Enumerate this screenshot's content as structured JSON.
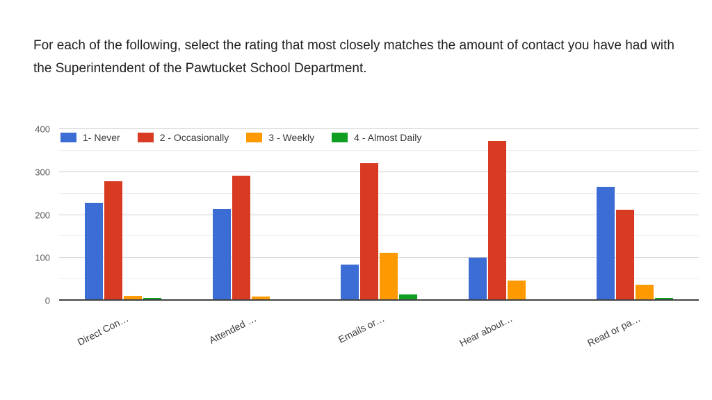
{
  "title": "For each of the following, select the rating that most closely matches the amount of contact you have had with the Superintendent of the Pawtucket School Department.",
  "chart_data": {
    "type": "bar",
    "title": "For each of the following, select the rating that most closely matches the amount of contact you have had with the Superintendent of the Pawtucket School Department.",
    "categories": [
      "Direct Con…",
      "Attended …",
      "Emails or…",
      "Hear about…",
      "Read or pa…"
    ],
    "series": [
      {
        "name": "1- Never",
        "color": "#3c6dd5",
        "values": [
          228,
          214,
          85,
          100,
          265
        ]
      },
      {
        "name": "2 - Occasionally",
        "color": "#d83a22",
        "values": [
          278,
          291,
          320,
          373,
          212
        ]
      },
      {
        "name": "3 - Weekly",
        "color": "#ff9900",
        "values": [
          12,
          9,
          111,
          47,
          38
        ]
      },
      {
        "name": "4 - Almost Daily",
        "color": "#109e20",
        "values": [
          7,
          3,
          14,
          3,
          6
        ]
      }
    ],
    "xlabel": "",
    "ylabel": "",
    "ylim": [
      0,
      400
    ],
    "y_ticks": [
      0,
      100,
      200,
      300,
      400
    ],
    "y_minor_step": 50,
    "grid": true,
    "legend_position": "top",
    "x_label_rotation_deg": -27
  },
  "colors": {
    "background": "#ffffff",
    "title_text": "#212121",
    "axis_tick_text": "#58595b",
    "category_text": "#3a3a3a",
    "legend_text": "#3a3a3a",
    "grid_major": "#cccccc",
    "grid_minor": "#ebebeb",
    "baseline": "#424242"
  }
}
